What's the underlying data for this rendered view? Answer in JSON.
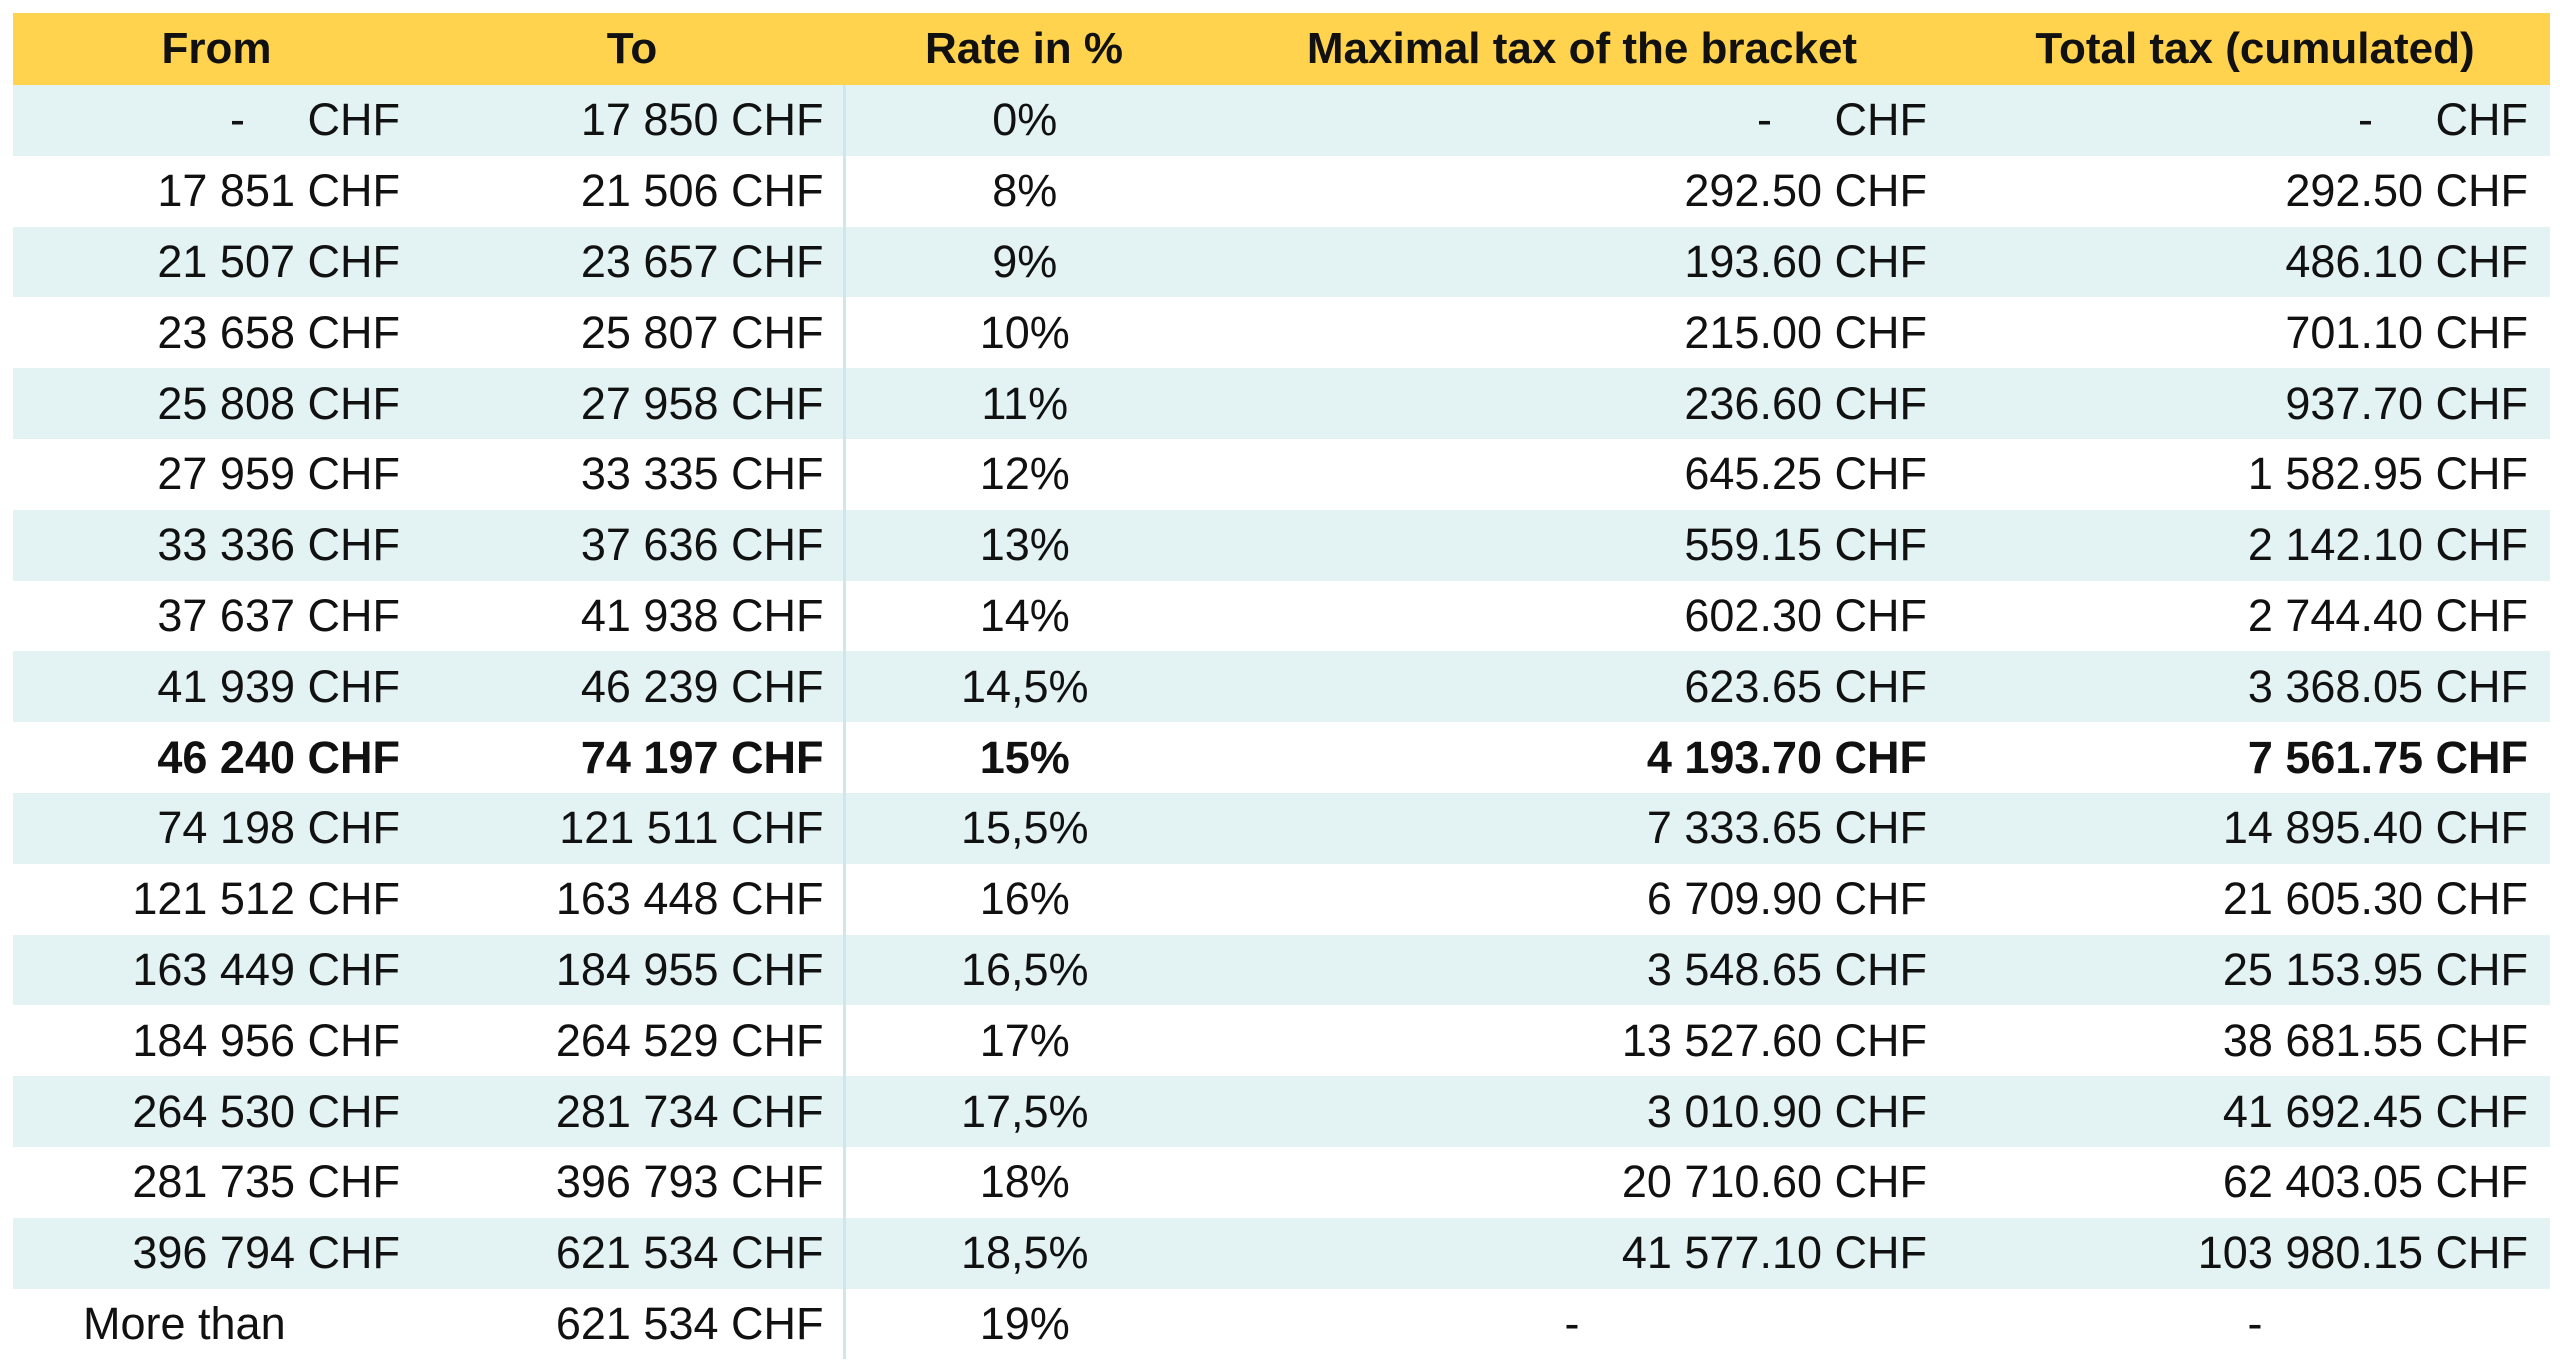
{
  "table": {
    "header": [
      "From",
      "To",
      "Rate in %",
      "Maximal tax of the bracket",
      "Total tax (cumulated)"
    ],
    "rows": [
      [
        "-     CHF",
        "17 850 CHF",
        "0%",
        "-     CHF",
        "-     CHF"
      ],
      [
        "17 851 CHF",
        "21 506 CHF",
        "8%",
        "292.50 CHF",
        "292.50 CHF"
      ],
      [
        "21 507 CHF",
        "23 657 CHF",
        "9%",
        "193.60 CHF",
        "486.10 CHF"
      ],
      [
        "23 658 CHF",
        "25 807 CHF",
        "10%",
        "215.00 CHF",
        "701.10 CHF"
      ],
      [
        "25 808 CHF",
        "27 958 CHF",
        "11%",
        "236.60 CHF",
        "937.70 CHF"
      ],
      [
        "27 959 CHF",
        "33 335 CHF",
        "12%",
        "645.25 CHF",
        "1 582.95 CHF"
      ],
      [
        "33 336 CHF",
        "37 636 CHF",
        "13%",
        "559.15 CHF",
        "2 142.10 CHF"
      ],
      [
        "37 637 CHF",
        "41 938 CHF",
        "14%",
        "602.30 CHF",
        "2 744.40 CHF"
      ],
      [
        "41 939 CHF",
        "46 239 CHF",
        "14,5%",
        "623.65 CHF",
        "3 368.05 CHF"
      ],
      [
        "46 240 CHF",
        "74 197 CHF",
        "15%",
        "4 193.70 CHF",
        "7 561.75 CHF"
      ],
      [
        "74 198 CHF",
        "121 511 CHF",
        "15,5%",
        "7 333.65 CHF",
        "14 895.40 CHF"
      ],
      [
        "121 512 CHF",
        "163 448 CHF",
        "16%",
        "6 709.90 CHF",
        "21 605.30 CHF"
      ],
      [
        "163 449 CHF",
        "184 955 CHF",
        "16,5%",
        "3 548.65 CHF",
        "25 153.95 CHF"
      ],
      [
        "184 956 CHF",
        "264 529 CHF",
        "17%",
        "13 527.60 CHF",
        "38 681.55 CHF"
      ],
      [
        "264 530 CHF",
        "281 734 CHF",
        "17,5%",
        "3 010.90 CHF",
        "41 692.45 CHF"
      ],
      [
        "281 735 CHF",
        "396 793 CHF",
        "18%",
        "20 710.60 CHF",
        "62 403.05 CHF"
      ],
      [
        "396 794 CHF",
        "621 534 CHF",
        "18,5%",
        "41 577.10 CHF",
        "103 980.15 CHF"
      ],
      [
        "More than",
        "621 534 CHF",
        "19%",
        "-",
        "-"
      ]
    ]
  }
}
